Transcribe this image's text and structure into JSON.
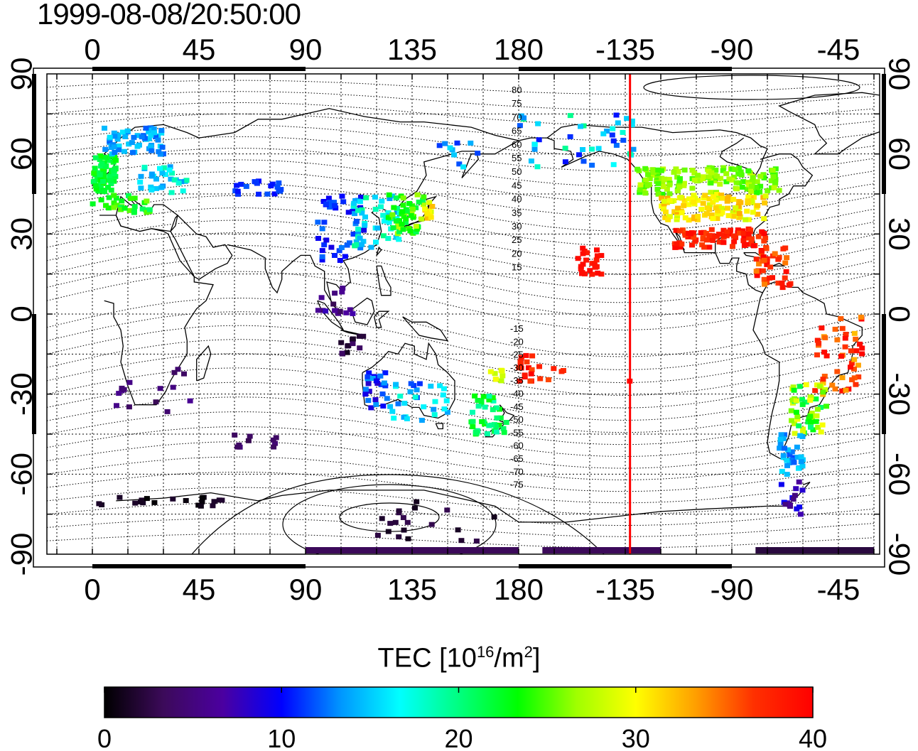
{
  "timestamp": "1999-08-08/20:50:00",
  "map": {
    "x_ticks": [
      0,
      45,
      90,
      135,
      180,
      -135,
      -90,
      -45
    ],
    "y_ticks_left": [
      90,
      60,
      30,
      0,
      -30,
      -60,
      -90
    ],
    "y_ticks_right": [
      90,
      60,
      30,
      0,
      -30,
      -60,
      -90
    ],
    "terminator_longitude": -133,
    "terminator_color": "#ff0000",
    "contour_labels_north": [
      "80",
      "75",
      "70",
      "65",
      "60",
      "55",
      "50",
      "45",
      "40",
      "35",
      "30",
      "25",
      "20",
      "15"
    ],
    "contour_labels_south": [
      "-15",
      "-20",
      "-25",
      "-30",
      "-35",
      "-40",
      "-45",
      "-50",
      "-55",
      "-60",
      "-65",
      "-70",
      "-75"
    ]
  },
  "colorbar": {
    "title_prefix": "TEC  [10",
    "title_exp1": "16",
    "title_mid": "/m",
    "title_exp2": "2",
    "title_suffix": "]",
    "ticks": [
      "0",
      "10",
      "20",
      "30",
      "40"
    ],
    "min": 0,
    "max": 40,
    "colors": [
      "#000000",
      "#3c0a5a",
      "#4b00a0",
      "#0000ff",
      "#0096ff",
      "#00ffff",
      "#00ff80",
      "#00ff00",
      "#a0ff00",
      "#ffff00",
      "#ffa000",
      "#ff3000",
      "#ff0000"
    ]
  }
}
